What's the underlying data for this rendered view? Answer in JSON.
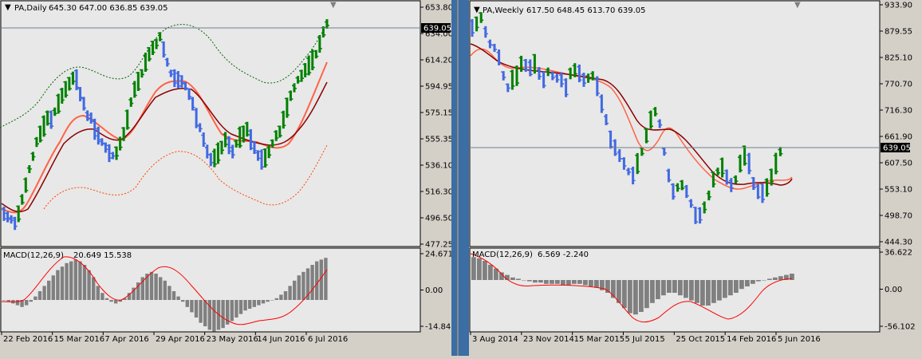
{
  "left_chart": {
    "symbol_label": "PA,Daily",
    "ohlc_readout": "645.30 647.00 636.85 639.05",
    "current_price_label": "639.05",
    "price_axis_ticks": [
      "653.80",
      "634.00",
      "614.20",
      "594.95",
      "575.15",
      "555.35",
      "536.10",
      "516.30",
      "496.50",
      "477.25"
    ],
    "macd_label": "MACD(12,26,9)",
    "macd_values": "20.649 15.538",
    "macd_axis_ticks": [
      "24.671",
      "0.00",
      "-14.842"
    ],
    "date_ticks": [
      "22 Feb 2016",
      "15 Mar 2016",
      "7 Apr 2016",
      "29 Apr 2016",
      "23 May 2016",
      "14 Jun 2016",
      "6 Jul 2016"
    ]
  },
  "right_chart": {
    "symbol_label": "PA,Weekly",
    "ohlc_readout": "617.50 648.45 613.70 639.05",
    "current_price_label": "639.05",
    "price_axis_ticks": [
      "933.90",
      "879.55",
      "825.10",
      "770.70",
      "716.30",
      "661.90",
      "607.50",
      "553.10",
      "498.70",
      "444.30"
    ],
    "macd_label": "MACD(12,26,9)",
    "macd_values": "6.569 -2.240",
    "macd_axis_ticks": [
      "36.622",
      "0.00",
      "-56.102"
    ],
    "date_ticks": [
      "3 Aug 2014",
      "23 Nov 2014",
      "15 Mar 2015",
      "5 Jul 2015",
      "25 Oct 2015",
      "14 Feb 2016",
      "5 Jun 2016"
    ]
  },
  "colors": {
    "bull": "#008000",
    "bear": "#4169e1",
    "red_ma": "#ff6347",
    "dark_ma": "#8b0000",
    "envelope_upper": "#006400",
    "envelope_lower": "#ff4500",
    "macd_hist": "#808080",
    "macd_signal": "#ff0000",
    "panel_bg": "#e8e8e8"
  }
}
